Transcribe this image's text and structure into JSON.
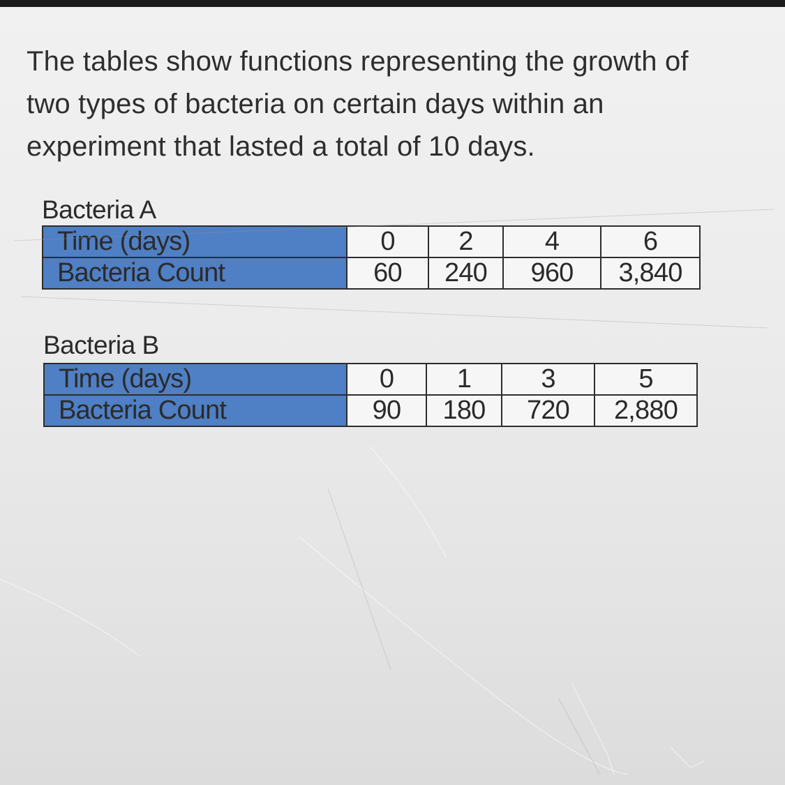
{
  "question": {
    "text_line1": "The tables show functions representing the growth of",
    "text_line2": "two types of bacteria on certain days within an",
    "text_line3": "experiment that lasted a total of 10 days."
  },
  "tables": [
    {
      "caption": "Bacteria A",
      "rows": [
        {
          "label": "Time (days)",
          "values": [
            "0",
            "2",
            "4",
            "6"
          ]
        },
        {
          "label": "Bacteria Count",
          "values": [
            "60",
            "240",
            "960",
            "3,840"
          ]
        }
      ]
    },
    {
      "caption": "Bacteria B",
      "rows": [
        {
          "label": "Time (days)",
          "values": [
            "0",
            "1",
            "3",
            "5"
          ]
        },
        {
          "label": "Bacteria Count",
          "values": [
            "90",
            "180",
            "720",
            "2,880"
          ]
        }
      ]
    }
  ],
  "colors": {
    "header_cell": "#4f7fc4",
    "value_cell": "#f6f6f6",
    "border": "#2d2d2d"
  }
}
